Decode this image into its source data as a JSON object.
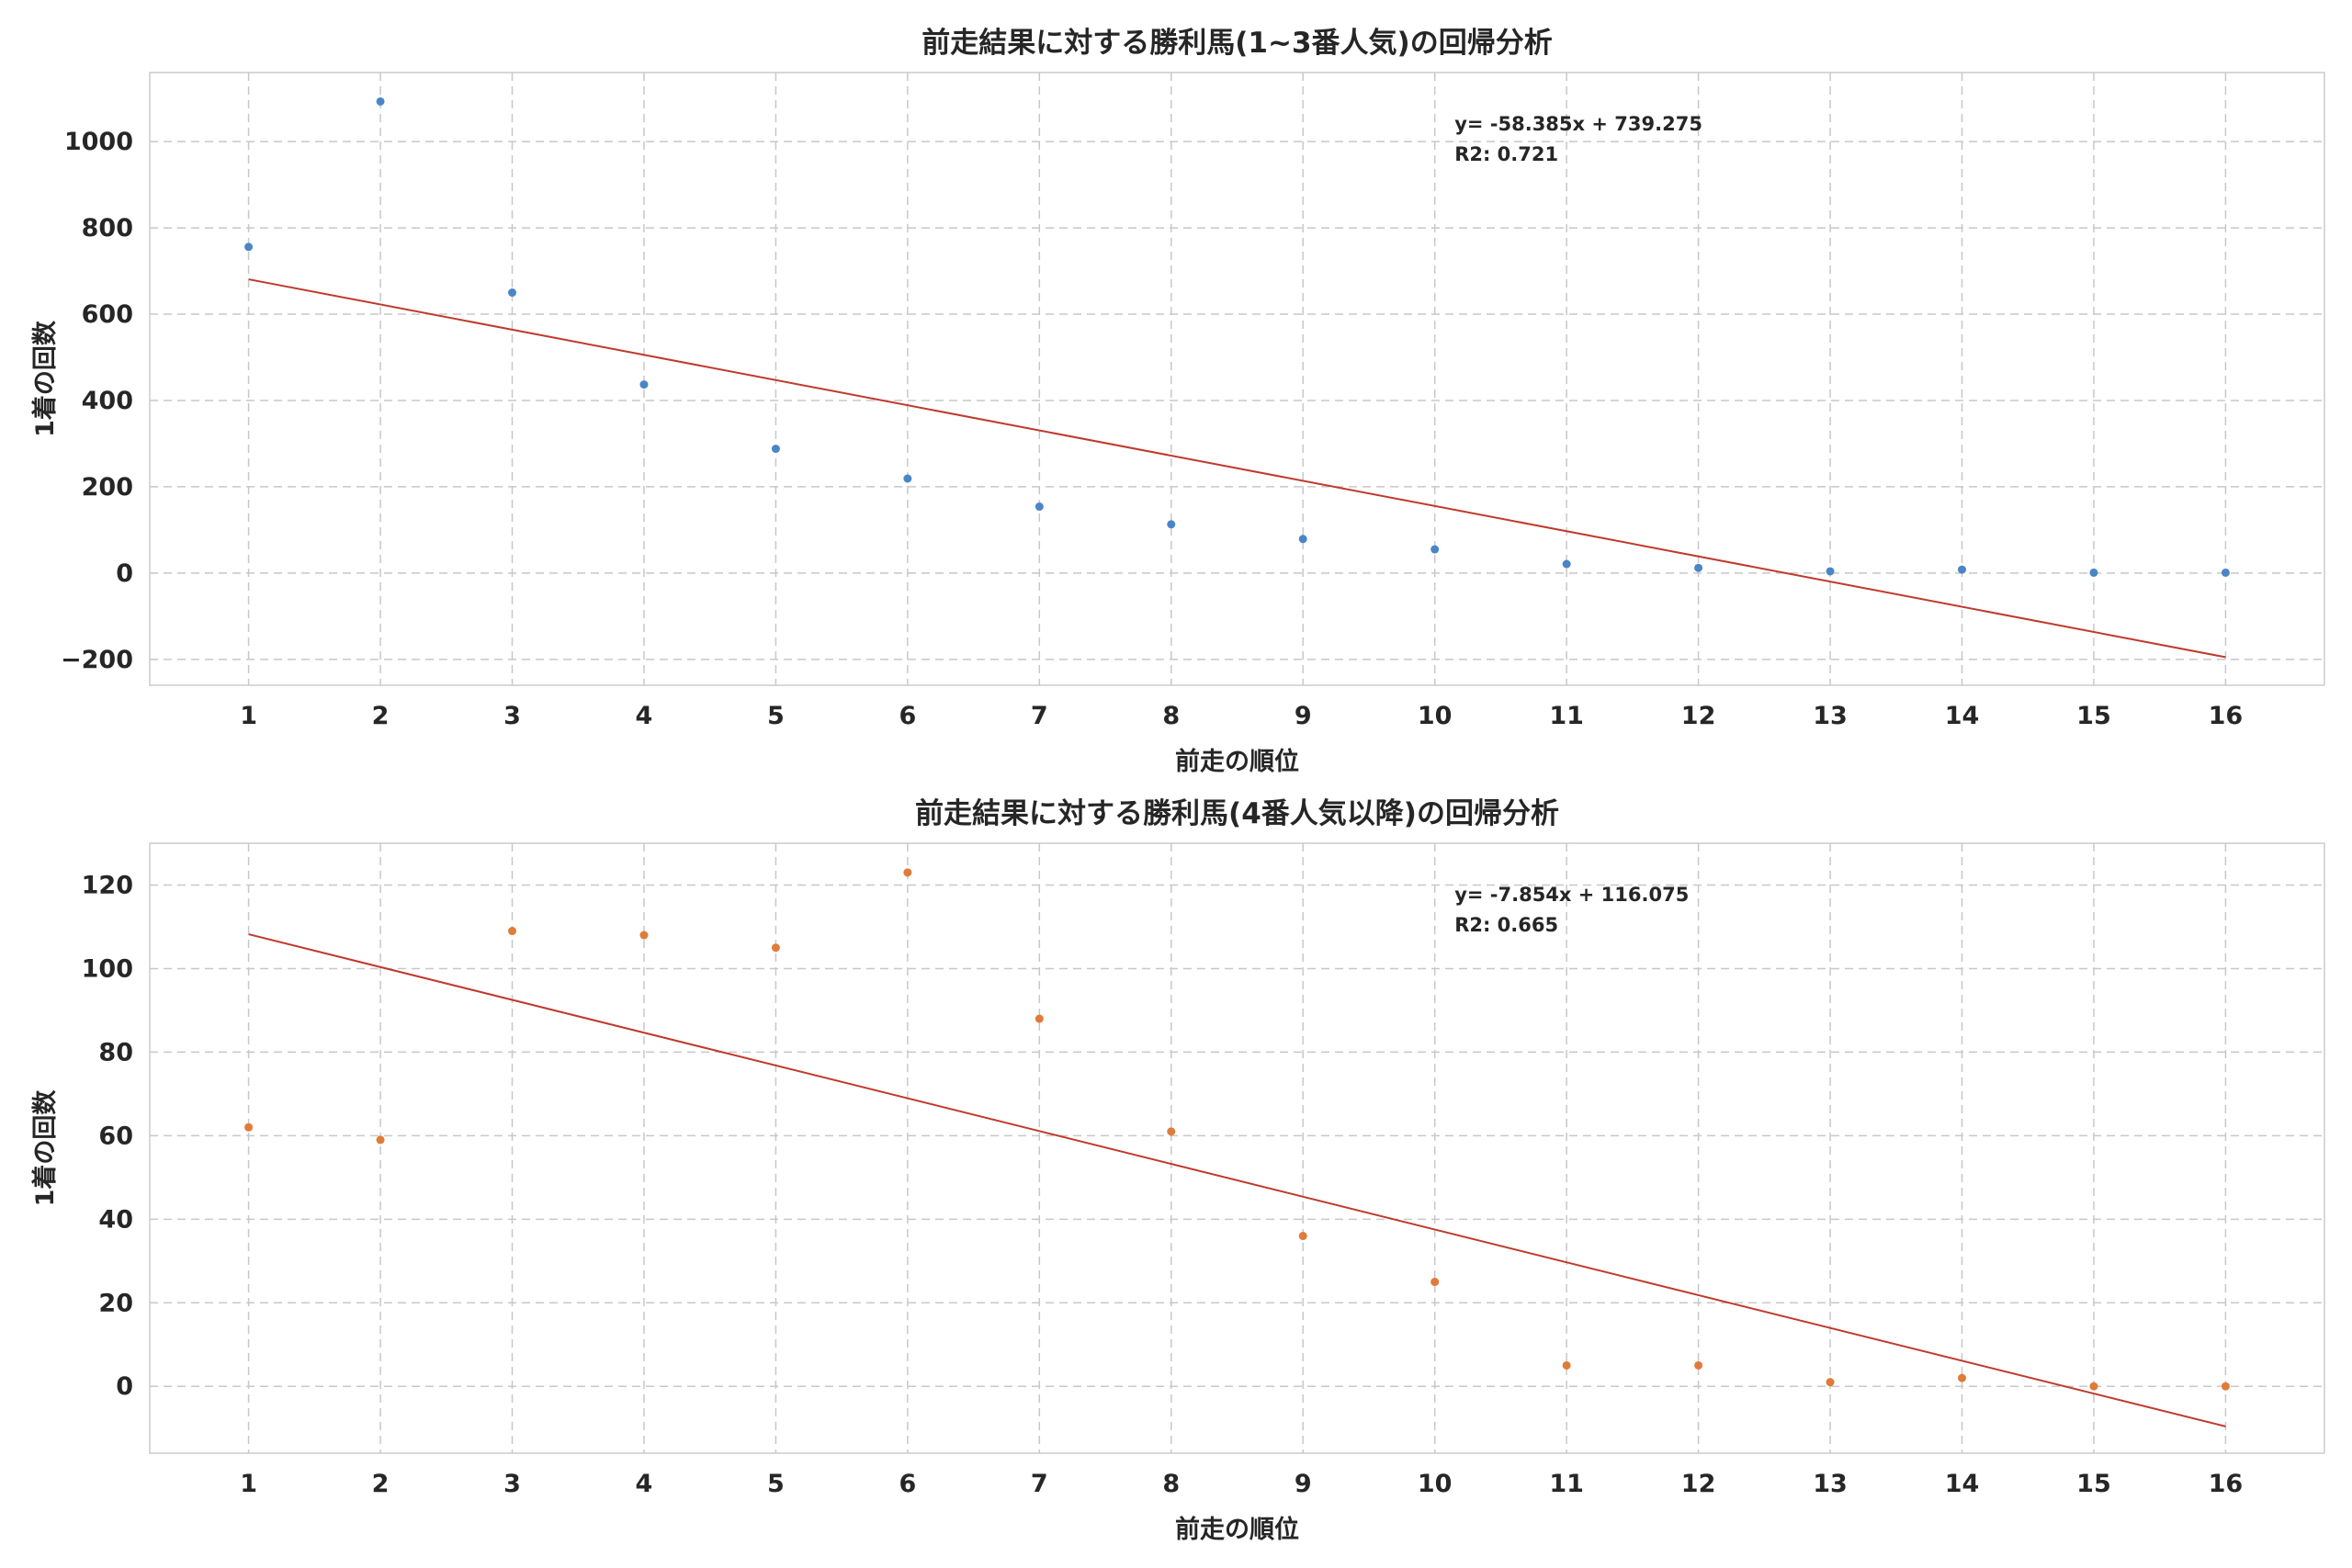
{
  "chart_data": [
    {
      "type": "scatter",
      "title": "前走結果に対する勝利馬(1~3番人気)の回帰分析",
      "xlabel": "前走の順位",
      "ylabel": "1着の回数",
      "x": [
        1,
        2,
        3,
        4,
        5,
        6,
        7,
        8,
        9,
        10,
        11,
        12,
        13,
        14,
        15,
        16
      ],
      "y": [
        756,
        1093,
        650,
        437,
        288,
        219,
        154,
        113,
        79,
        55,
        21,
        12,
        4,
        8,
        1,
        1
      ],
      "xticks": [
        "1",
        "2",
        "3",
        "4",
        "5",
        "6",
        "7",
        "8",
        "9",
        "10",
        "11",
        "12",
        "13",
        "14",
        "15",
        "16"
      ],
      "yticks": [
        "−200",
        "0",
        "200",
        "400",
        "600",
        "800",
        "1000"
      ],
      "ytick_values": [
        -200,
        0,
        200,
        400,
        600,
        800,
        1000
      ],
      "xlim": [
        0.25,
        16.75
      ],
      "ylim": [
        -260,
        1160
      ],
      "regression": {
        "slope": -58.385,
        "intercept": 739.275
      },
      "annotation": [
        "y= -58.385x + 739.275",
        "R2: 0.721"
      ],
      "grid": true,
      "point_color": "#4a86c5",
      "line_color": "#c0392b"
    },
    {
      "type": "scatter",
      "title": "前走結果に対する勝利馬(4番人気以降)の回帰分析",
      "xlabel": "前走の順位",
      "ylabel": "1着の回数",
      "x": [
        1,
        2,
        3,
        4,
        5,
        6,
        7,
        8,
        9,
        10,
        11,
        12,
        13,
        14,
        15,
        16
      ],
      "y": [
        62,
        59,
        109,
        108,
        105,
        123,
        88,
        61,
        36,
        25,
        5,
        5,
        1,
        2,
        0,
        0
      ],
      "xticks": [
        "1",
        "2",
        "3",
        "4",
        "5",
        "6",
        "7",
        "8",
        "9",
        "10",
        "11",
        "12",
        "13",
        "14",
        "15",
        "16"
      ],
      "yticks": [
        "0",
        "20",
        "40",
        "60",
        "80",
        "100",
        "120"
      ],
      "ytick_values": [
        0,
        20,
        40,
        60,
        80,
        100,
        120
      ],
      "xlim": [
        0.25,
        16.75
      ],
      "ylim": [
        -16,
        130
      ],
      "regression": {
        "slope": -7.854,
        "intercept": 116.075
      },
      "annotation": [
        "y= -7.854x + 116.075",
        "R2: 0.665"
      ],
      "grid": true,
      "point_color": "#e07b39",
      "line_color": "#c0392b"
    }
  ]
}
